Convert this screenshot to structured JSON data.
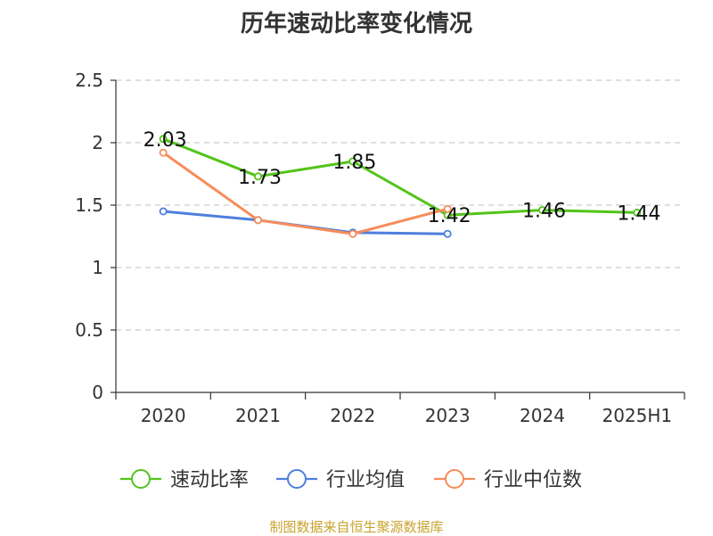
{
  "chart_data": {
    "type": "line",
    "title": "历年速动比率变化情况",
    "categories": [
      "2020",
      "2021",
      "2022",
      "2023",
      "2024",
      "2025H1"
    ],
    "ylim": [
      0,
      2.5
    ],
    "yticks": [
      "0",
      "0.5",
      "1",
      "1.5",
      "2",
      "2.5"
    ],
    "grid": true,
    "legend_position": "bottom",
    "series": [
      {
        "name": "速动比率",
        "color": "#52c41a",
        "values": [
          2.03,
          1.73,
          1.85,
          1.42,
          1.46,
          1.44
        ],
        "labels": [
          "2.03",
          "1.73",
          "1.85",
          "1.42",
          "1.46",
          "1.44"
        ]
      },
      {
        "name": "行业均值",
        "color": "#4f7fdc",
        "values": [
          1.45,
          1.38,
          1.28,
          1.27,
          null,
          null
        ]
      },
      {
        "name": "行业中位数",
        "color": "#f78c5a",
        "values": [
          1.92,
          1.38,
          1.27,
          1.47,
          null,
          null
        ]
      }
    ]
  },
  "source_note": "制图数据来自恒生聚源数据库"
}
